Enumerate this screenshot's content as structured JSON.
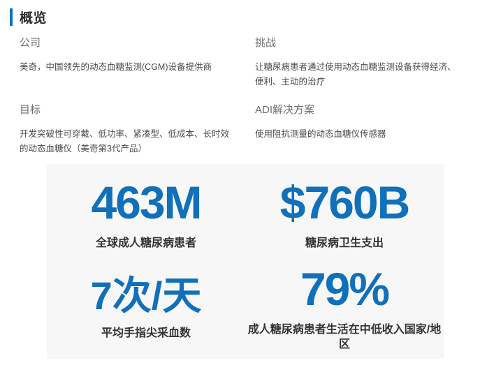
{
  "accent_color": "#1070ba",
  "panel_background": "#f7f7f7",
  "overview": {
    "title": "概览",
    "sections": [
      {
        "label": "公司",
        "text": "美奇，中国领先的动态血糖监测(CGM)设备提供商"
      },
      {
        "label": "挑战",
        "text": "让糖尿病患者通过使用动态血糖监测设备获得经济、便利、主动的治疗"
      },
      {
        "label": "目标",
        "text": "开发突破性可穿戴、低功率、紧凑型、低成本、长时效的动态血糖仪（美奇第3代产品）"
      },
      {
        "label": "ADI解决方案",
        "text": "使用阻抗测量的动态血糖仪传感器"
      }
    ]
  },
  "stats": [
    {
      "value": "463M",
      "caption": "全球成人糖尿病患者"
    },
    {
      "value": "$760B",
      "caption": "糖尿病卫生支出"
    },
    {
      "value": "7次/天",
      "caption": "平均手指尖采血数"
    },
    {
      "value": "79%",
      "caption": "成人糖尿病患者生活在中低收入国家/地区"
    }
  ]
}
